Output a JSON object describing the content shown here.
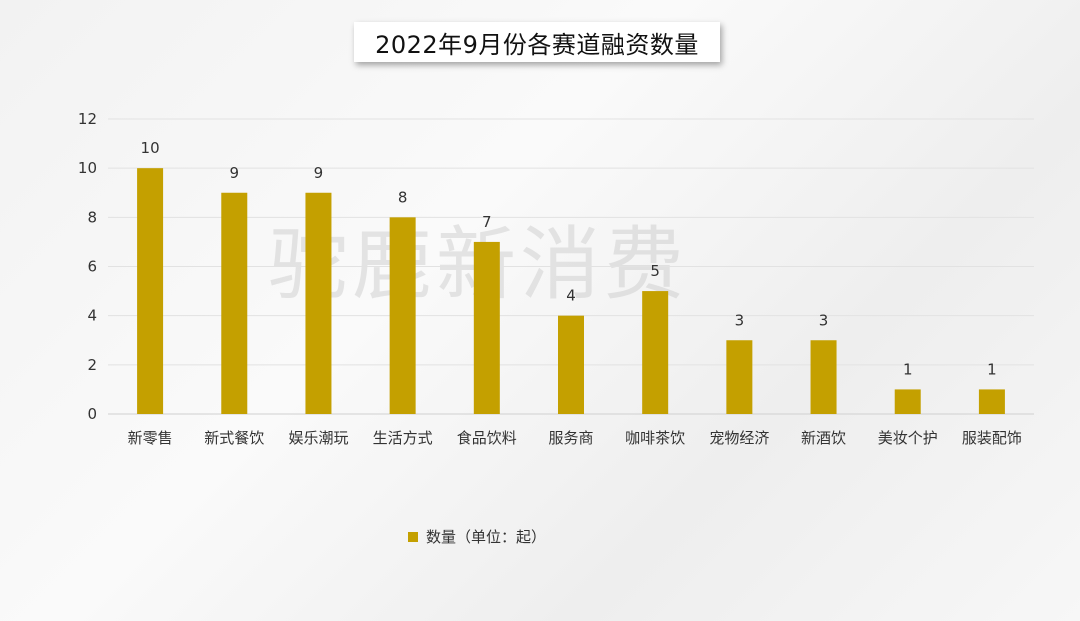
{
  "watermark": "驼鹿新消费",
  "colors": {
    "bar": "#c4a000",
    "grid": "#e2e2e2",
    "axis": "#d0d0d0",
    "text": "#333333"
  },
  "chart_data": {
    "type": "bar",
    "title": "2022年9月份各赛道融资数量",
    "categories": [
      "新零售",
      "新式餐饮",
      "娱乐潮玩",
      "生活方式",
      "食品饮料",
      "服务商",
      "咖啡茶饮",
      "宠物经济",
      "新酒饮",
      "美妆个护",
      "服装配饰"
    ],
    "series": [
      {
        "name": "数量（单位：起）",
        "values": [
          10,
          9,
          9,
          8,
          7,
          4,
          5,
          3,
          3,
          1,
          1
        ]
      }
    ],
    "ylim": [
      0,
      12
    ],
    "yticks": [
      0,
      2,
      4,
      6,
      8,
      10,
      12
    ],
    "grid": true,
    "data_labels": true,
    "legend": "bottom"
  }
}
